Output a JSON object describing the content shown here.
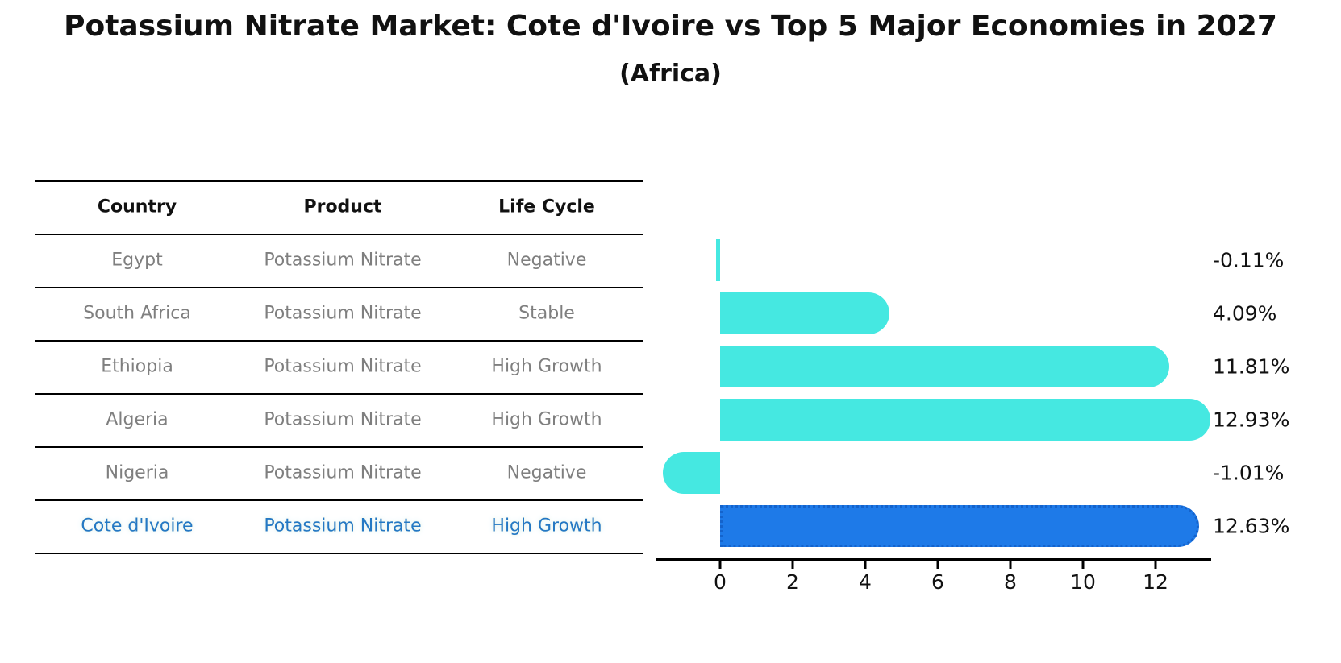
{
  "title": "Potassium Nitrate Market: Cote d'Ivoire vs Top 5 Major Economies in 2027",
  "subtitle": "(Africa)",
  "table": {
    "headers": [
      "Country",
      "Product",
      "Life Cycle"
    ],
    "rows": [
      {
        "country": "Egypt",
        "product": "Potassium Nitrate",
        "life_cycle": "Negative",
        "highlight": false
      },
      {
        "country": "South Africa",
        "product": "Potassium Nitrate",
        "life_cycle": "Stable",
        "highlight": false
      },
      {
        "country": "Ethiopia",
        "product": "Potassium Nitrate",
        "life_cycle": "High Growth",
        "highlight": false
      },
      {
        "country": "Algeria",
        "product": "Potassium Nitrate",
        "life_cycle": "High Growth",
        "highlight": false
      },
      {
        "country": "Nigeria",
        "product": "Potassium Nitrate",
        "life_cycle": "Negative",
        "highlight": false
      },
      {
        "country": "Cote d'Ivoire",
        "product": "Potassium Nitrate",
        "life_cycle": "High Growth",
        "highlight": true
      }
    ]
  },
  "chart_data": {
    "type": "bar",
    "orientation": "horizontal",
    "title": "Potassium Nitrate Market: Cote d'Ivoire vs Top 5 Major Economies in 2027",
    "subtitle": "(Africa)",
    "categories": [
      "Egypt",
      "South Africa",
      "Ethiopia",
      "Algeria",
      "Nigeria",
      "Cote d'Ivoire"
    ],
    "values": [
      -0.11,
      4.09,
      11.81,
      12.93,
      -1.01,
      12.63
    ],
    "value_labels": [
      "-0.11%",
      "4.09%",
      "11.81%",
      "12.93%",
      "-1.01%",
      "12.63%"
    ],
    "xticks": [
      0,
      2,
      4,
      6,
      8,
      10,
      12
    ],
    "xlim": [
      -1.76,
      13.53
    ],
    "grid": false,
    "legend": false,
    "highlight_index": 5,
    "bar_color": "#45E8E1",
    "highlight_bar_color": "#1E7AE8",
    "highlight_border_color": "#1463CC",
    "highlight_text_color": "#2478C4",
    "text_color": "#7f7f7f",
    "axis_color": "#000000"
  }
}
